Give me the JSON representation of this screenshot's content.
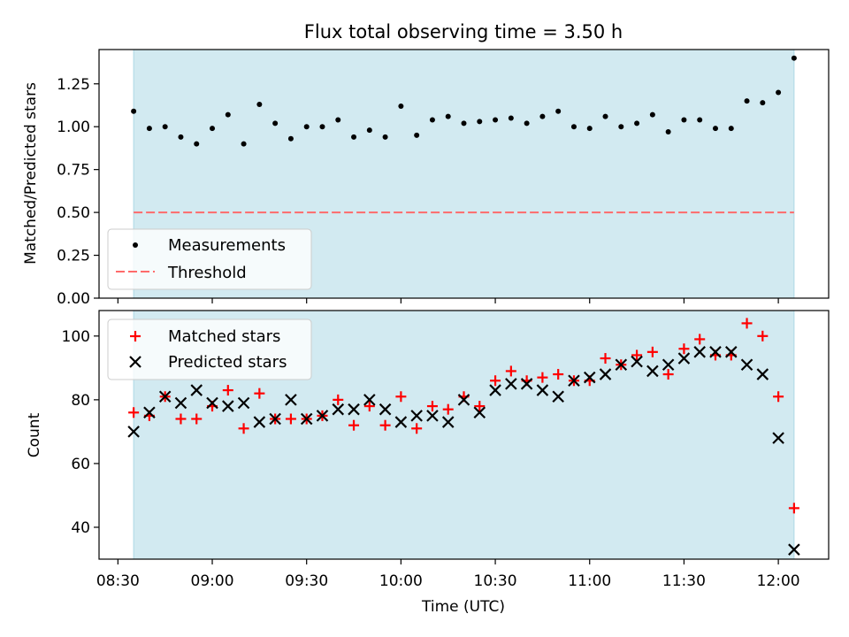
{
  "figure": {
    "title": "Flux total observing time = 3.50 h"
  },
  "chart_data": [
    {
      "type": "scatter",
      "ylabel": "Matched/Predicted stars",
      "xlim": [
        "08:24",
        "12:16"
      ],
      "ylim": [
        0,
        1.45
      ],
      "yticks": [
        "0.00",
        "0.25",
        "0.50",
        "0.75",
        "1.00",
        "1.25"
      ],
      "ytick_values": [
        0,
        0.25,
        0.5,
        0.75,
        1.0,
        1.25
      ],
      "shaded_span": {
        "start": "08:35",
        "end": "12:05",
        "color": "#add8e6"
      },
      "threshold": {
        "value": 0.5,
        "color": "#ff6b6b"
      },
      "legend": {
        "position": "lower-left",
        "entries": [
          "Measurements",
          "Threshold"
        ]
      },
      "series": [
        {
          "name": "Measurements",
          "marker": "dot",
          "color": "#000000",
          "x": [
            "08:35",
            "08:40",
            "08:45",
            "08:50",
            "08:55",
            "09:00",
            "09:05",
            "09:10",
            "09:15",
            "09:20",
            "09:25",
            "09:30",
            "09:35",
            "09:40",
            "09:45",
            "09:50",
            "09:55",
            "10:00",
            "10:05",
            "10:10",
            "10:15",
            "10:20",
            "10:25",
            "10:30",
            "10:35",
            "10:40",
            "10:45",
            "10:50",
            "10:55",
            "11:00",
            "11:05",
            "11:10",
            "11:15",
            "11:20",
            "11:25",
            "11:30",
            "11:35",
            "11:40",
            "11:45",
            "11:50",
            "11:55",
            "12:00",
            "12:05"
          ],
          "y": [
            1.09,
            0.99,
            1.0,
            0.94,
            0.9,
            0.99,
            1.07,
            0.9,
            1.13,
            1.02,
            0.93,
            1.0,
            1.0,
            1.04,
            0.94,
            0.98,
            0.94,
            1.12,
            0.95,
            1.04,
            1.06,
            1.02,
            1.03,
            1.04,
            1.05,
            1.02,
            1.06,
            1.09,
            1.0,
            0.99,
            1.06,
            1.0,
            1.02,
            1.07,
            0.97,
            1.04,
            1.04,
            0.99,
            0.99,
            1.15,
            1.14,
            1.2,
            1.4
          ]
        },
        {
          "name": "Threshold",
          "marker": "dashed-line",
          "color": "#ff6b6b",
          "x": [
            "08:35",
            "12:05"
          ],
          "y": [
            0.5,
            0.5
          ]
        }
      ]
    },
    {
      "type": "scatter",
      "xlabel": "Time (UTC)",
      "ylabel": "Count",
      "xlim": [
        "08:24",
        "12:16"
      ],
      "ylim": [
        30,
        108
      ],
      "xticks": [
        "08:30",
        "09:00",
        "09:30",
        "10:00",
        "10:30",
        "11:00",
        "11:30",
        "12:00"
      ],
      "yticks": [
        "40",
        "60",
        "80",
        "100"
      ],
      "ytick_values": [
        40,
        60,
        80,
        100
      ],
      "shaded_span": {
        "start": "08:35",
        "end": "12:05",
        "color": "#add8e6"
      },
      "legend": {
        "position": "top-left",
        "entries": [
          "Matched stars",
          "Predicted stars"
        ]
      },
      "x": [
        "08:35",
        "08:40",
        "08:45",
        "08:50",
        "08:55",
        "09:00",
        "09:05",
        "09:10",
        "09:15",
        "09:20",
        "09:25",
        "09:30",
        "09:35",
        "09:40",
        "09:45",
        "09:50",
        "09:55",
        "10:00",
        "10:05",
        "10:10",
        "10:15",
        "10:20",
        "10:25",
        "10:30",
        "10:35",
        "10:40",
        "10:45",
        "10:50",
        "10:55",
        "11:00",
        "11:05",
        "11:10",
        "11:15",
        "11:20",
        "11:25",
        "11:30",
        "11:35",
        "11:40",
        "11:45",
        "11:50",
        "11:55",
        "12:00",
        "12:05"
      ],
      "series": [
        {
          "name": "Matched stars",
          "marker": "plus",
          "color": "#ff0000",
          "values": [
            76,
            75,
            81,
            74,
            74,
            78,
            83,
            71,
            82,
            74,
            74,
            74,
            75,
            80,
            72,
            78,
            72,
            81,
            71,
            78,
            77,
            81,
            78,
            86,
            89,
            86,
            87,
            88,
            86,
            86,
            93,
            91,
            94,
            95,
            88,
            96,
            99,
            94,
            94,
            104,
            100,
            81,
            46
          ]
        },
        {
          "name": "Predicted stars",
          "marker": "x",
          "color": "#000000",
          "values": [
            70,
            76,
            81,
            79,
            83,
            79,
            78,
            79,
            73,
            74,
            80,
            74,
            75,
            77,
            77,
            80,
            77,
            73,
            75,
            75,
            73,
            80,
            76,
            83,
            85,
            85,
            83,
            81,
            86,
            87,
            88,
            91,
            92,
            89,
            91,
            93,
            95,
            95,
            95,
            91,
            88,
            68,
            33
          ]
        }
      ]
    }
  ]
}
